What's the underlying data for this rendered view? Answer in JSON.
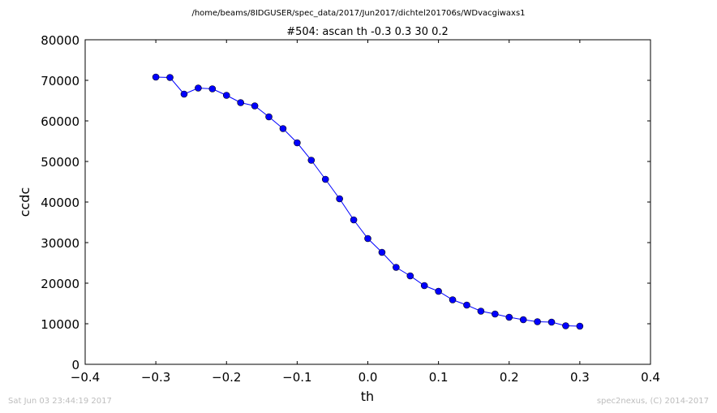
{
  "chart_data": {
    "type": "line",
    "suptitle": "/home/beams/8IDGUSER/spec_data/2017/Jun2017/dichtel201706s/WDvacgiwaxs1",
    "title": "#504: ascan  th -0.3 0.3  30 0.2",
    "xlabel": "th",
    "ylabel": "ccdc",
    "xlim": [
      -0.4,
      0.4
    ],
    "ylim": [
      0,
      80000
    ],
    "xticks": [
      -0.4,
      -0.3,
      -0.2,
      -0.1,
      0.0,
      0.1,
      0.2,
      0.3,
      0.4
    ],
    "xtick_labels": [
      "−0.4",
      "−0.3",
      "−0.2",
      "−0.1",
      "0.0",
      "0.1",
      "0.2",
      "0.3",
      "0.4"
    ],
    "yticks": [
      0,
      10000,
      20000,
      30000,
      40000,
      50000,
      60000,
      70000,
      80000
    ],
    "ytick_labels": [
      "0",
      "10000",
      "20000",
      "30000",
      "40000",
      "50000",
      "60000",
      "70000",
      "80000"
    ],
    "grid": false,
    "series": [
      {
        "color": "#0000ff",
        "marker": "circle",
        "x": [
          -0.3,
          -0.28,
          -0.26,
          -0.24,
          -0.22,
          -0.2,
          -0.18,
          -0.16,
          -0.14,
          -0.12,
          -0.1,
          -0.08,
          -0.06,
          -0.04,
          -0.02,
          0.0,
          0.02,
          0.04,
          0.06,
          0.08,
          0.1,
          0.12,
          0.14,
          0.16,
          0.18,
          0.2,
          0.22,
          0.24,
          0.26,
          0.28,
          0.3
        ],
        "y": [
          70800,
          70700,
          66600,
          68100,
          67900,
          66300,
          64500,
          63700,
          61000,
          58100,
          54600,
          50300,
          45600,
          40800,
          35600,
          31000,
          27600,
          23900,
          21800,
          19400,
          18000,
          15900,
          14600,
          13100,
          12400,
          11600,
          11000,
          10500,
          10400,
          9500,
          9400
        ]
      }
    ]
  },
  "footer": {
    "left": "Sat Jun 03 23:44:19 2017",
    "right": "spec2nexus, (C) 2014-2017"
  }
}
